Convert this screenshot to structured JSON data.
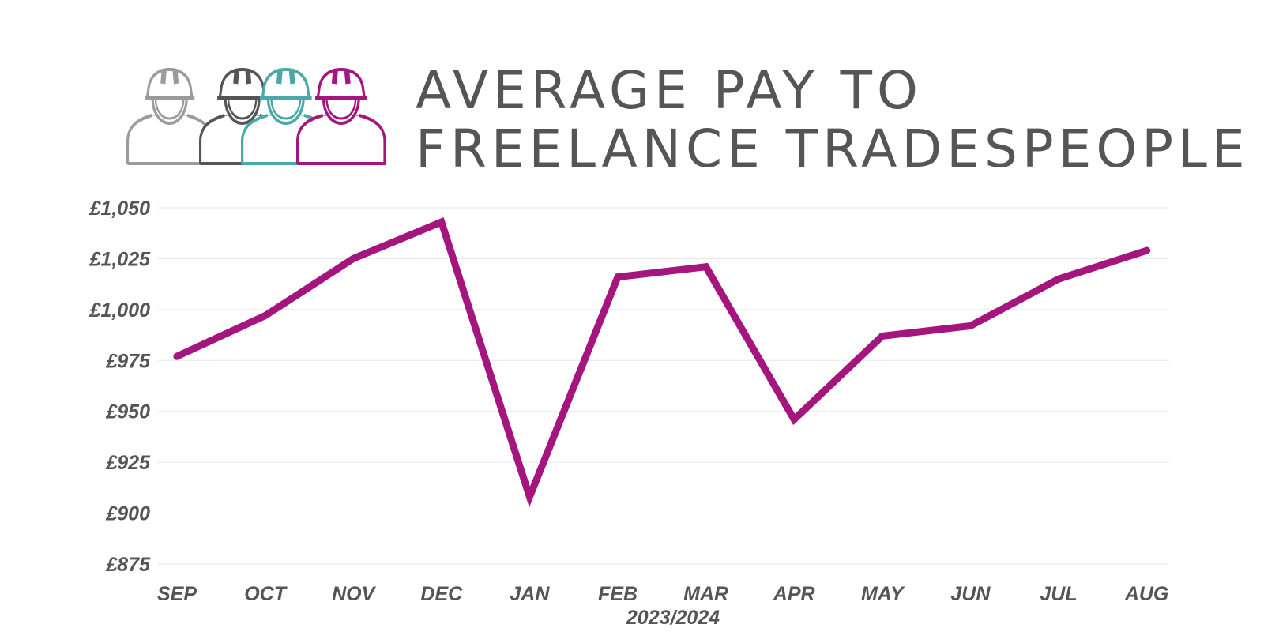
{
  "title": {
    "line1": "AVERAGE PAY TO",
    "line2": "FREELANCE TRADESPEOPLE"
  },
  "icons": [
    {
      "name": "tradesperson-hard-hat-icon",
      "color": "#9b9b9b"
    },
    {
      "name": "tradesperson-hard-hat-icon",
      "color": "#555555"
    },
    {
      "name": "tradesperson-hard-hat-icon",
      "color": "#4aa8a8"
    },
    {
      "name": "tradesperson-hard-hat-icon",
      "color": "#a5157e"
    }
  ],
  "colors": {
    "line": "#a5157e",
    "text": "#555555",
    "grid": "#e6e6e6"
  },
  "chart_data": {
    "type": "line",
    "title": "AVERAGE PAY TO FREELANCE TRADESPEOPLE",
    "xlabel": "2023/2024",
    "ylabel": "",
    "categories": [
      "SEP",
      "OCT",
      "NOV",
      "DEC",
      "JAN",
      "FEB",
      "MAR",
      "APR",
      "MAY",
      "JUN",
      "JUL",
      "AUG"
    ],
    "series": [
      {
        "values": [
          977,
          997,
          1025,
          1043,
          908,
          1016,
          1021,
          946,
          987,
          992,
          1015,
          1029
        ]
      }
    ],
    "yticks": [
      875,
      900,
      925,
      950,
      975,
      1000,
      1025,
      1050
    ],
    "ytick_labels": [
      "£875",
      "£900",
      "£925",
      "£950",
      "£975",
      "£1,000",
      "£1,025",
      "£1,050"
    ],
    "ylim": [
      875,
      1050
    ],
    "grid": true,
    "legend": "none"
  }
}
